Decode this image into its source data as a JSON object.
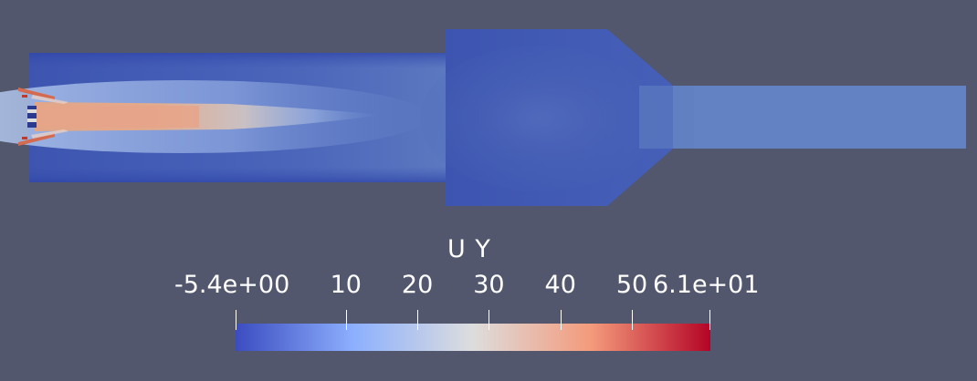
{
  "colorbar": {
    "title": "U Y",
    "min_label": "-5.4e+00",
    "max_label": "6.1e+01",
    "tick_labels": [
      "10",
      "20",
      "30",
      "40",
      "50"
    ],
    "min_value": -5.4,
    "max_value": 61,
    "tick_values": [
      10,
      20,
      30,
      40,
      50
    ],
    "colormap": [
      "#3b4cc0",
      "#8db0fe",
      "#dddddd",
      "#f49a7b",
      "#b40426"
    ]
  },
  "colors": {
    "background": "#52576e",
    "field_base": "#4a63b6",
    "outlet": "#6383c2",
    "jet_core": "#e9a387"
  }
}
